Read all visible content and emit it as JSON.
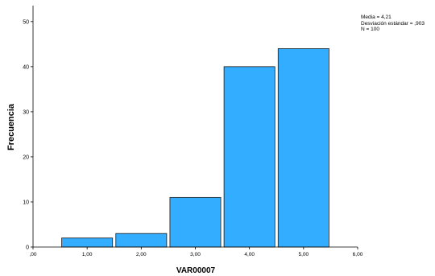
{
  "chart_data": {
    "type": "bar",
    "categories": [
      "1,00",
      "2,00",
      "3,00",
      "4,00",
      "5,00"
    ],
    "x": [
      1,
      2,
      3,
      4,
      5
    ],
    "values": [
      2,
      3,
      11,
      40,
      44
    ],
    "xlabel": "VAR00007",
    "ylabel": "Frecuencia",
    "xlim": [
      0,
      6
    ],
    "ylim": [
      0,
      53
    ],
    "x_ticks": [
      ",00",
      "1,00",
      "2,00",
      "3,00",
      "4,00",
      "5,00",
      "6,00"
    ],
    "y_ticks": [
      "0",
      "10",
      "20",
      "30",
      "40",
      "50"
    ],
    "grid": false,
    "bar_color": "#33adff",
    "bar_edge_color": "#1a1a1a",
    "stats": {
      "mean": "Media = 4,21",
      "sd": "Desviación estándar = ,903",
      "n": "N = 100"
    }
  }
}
